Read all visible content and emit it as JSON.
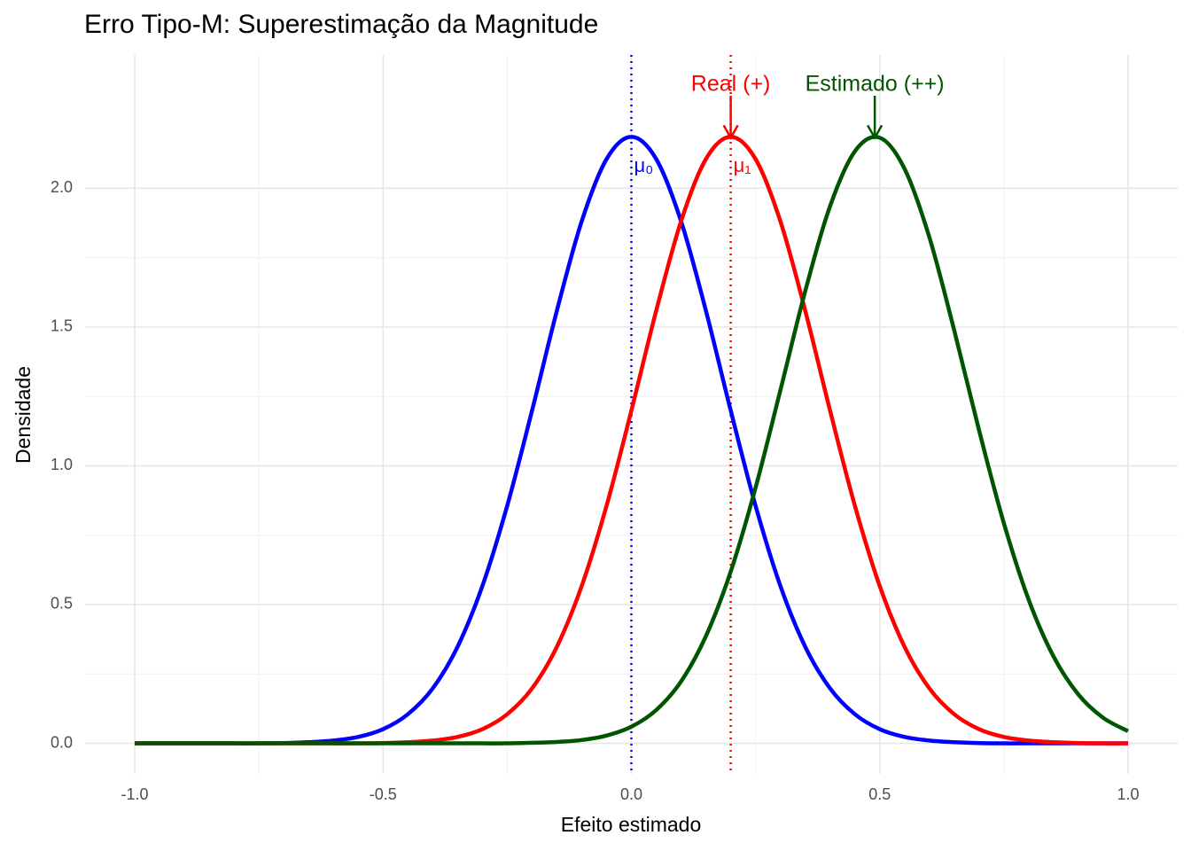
{
  "chart_data": {
    "type": "line",
    "title": "Erro Tipo-M: Superestimação da Magnitude",
    "x_label": "Efeito estimado",
    "y_label": "Densidade",
    "x": [
      -1,
      -0.95,
      -0.9,
      -0.85,
      -0.8,
      -0.75,
      -0.7,
      -0.65,
      -0.6,
      -0.55,
      -0.5,
      -0.45,
      -0.4,
      -0.35,
      -0.3,
      -0.25,
      -0.2,
      -0.15,
      -0.1,
      -0.05,
      0,
      0.05,
      0.1,
      0.15,
      0.2,
      0.25,
      0.3,
      0.35,
      0.4,
      0.45,
      0.5,
      0.55,
      0.6,
      0.65,
      0.7,
      0.75,
      0.8,
      0.85,
      0.9,
      0.95,
      1
    ],
    "series": [
      {
        "color": "#0000ff",
        "values": [
          0,
          0,
          0,
          0,
          0,
          0,
          0.001,
          0.004,
          0.01,
          0.023,
          0.051,
          0.105,
          0.198,
          0.348,
          0.567,
          0.856,
          1.199,
          1.559,
          1.881,
          2.105,
          2.185,
          2.105,
          1.881,
          1.559,
          1.199,
          0.856,
          0.567,
          0.348,
          0.198,
          0.105,
          0.051,
          0.023,
          0.01,
          0.004,
          0.001,
          0,
          0,
          0,
          0,
          0,
          0
        ]
      },
      {
        "color": "#ff0000",
        "values": [
          0,
          0,
          0,
          0,
          0,
          0,
          0,
          0,
          0,
          0,
          0.001,
          0.004,
          0.01,
          0.023,
          0.051,
          0.105,
          0.198,
          0.348,
          0.567,
          0.856,
          1.199,
          1.559,
          1.881,
          2.105,
          2.185,
          2.105,
          1.881,
          1.559,
          1.199,
          0.856,
          0.567,
          0.348,
          0.198,
          0.105,
          0.051,
          0.023,
          0.01,
          0.004,
          0.001,
          0,
          0
        ]
      },
      {
        "color": "#005500",
        "values": [
          0,
          0,
          0,
          0,
          0,
          0,
          0,
          0,
          0,
          0,
          0,
          0,
          0,
          0,
          0,
          0,
          0.002,
          0.005,
          0.012,
          0.028,
          0.06,
          0.12,
          0.223,
          0.386,
          0.619,
          0.921,
          1.272,
          1.629,
          1.935,
          2.133,
          2.182,
          2.07,
          1.823,
          1.488,
          1.128,
          0.793,
          0.517,
          0.313,
          0.176,
          0.092,
          0.044
        ]
      }
    ],
    "vlines": [
      {
        "x": 0,
        "color": "#0000ff",
        "label": "μ₀"
      },
      {
        "x": 0.2,
        "color": "#ff0000",
        "label": "μ₁"
      }
    ],
    "arrows": [
      {
        "x": 0.2,
        "color": "#ff0000",
        "label": "Real (+)"
      },
      {
        "x": 0.49,
        "color": "#005500",
        "label": "Estimado (++)"
      }
    ],
    "xlim": [
      -1.1,
      1.1
    ],
    "ylim": [
      -0.11,
      2.48
    ],
    "xticks": [
      {
        "value": -1,
        "label": "-1.0"
      },
      -0.5,
      {
        "value": 0,
        "label": "0.0"
      },
      0.5,
      {
        "value": 1,
        "label": "1.0"
      }
    ],
    "yticks": [
      {
        "value": 0,
        "label": "0.0"
      },
      0.5,
      {
        "value": 1,
        "label": "1.0"
      },
      1.5,
      {
        "value": 2,
        "label": "2.0"
      }
    ],
    "grid": true
  }
}
